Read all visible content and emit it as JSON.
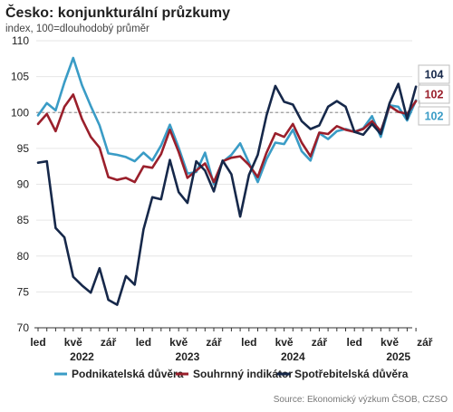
{
  "chart_data": {
    "type": "line",
    "title": "Česko: konjunkturální průzkumy",
    "subtitle": "index, 100=dlouhodobý průměr",
    "ylim": [
      70,
      110
    ],
    "yticks": [
      70,
      75,
      80,
      85,
      90,
      95,
      100,
      105,
      110
    ],
    "reference_line": 100,
    "x_month_labels": [
      "led",
      "kvě",
      "zář",
      "led",
      "kvě",
      "zář",
      "led",
      "kvě",
      "zář",
      "led",
      "kvě",
      "zář"
    ],
    "x_year_labels": [
      "2022",
      "2023",
      "2024",
      "2025"
    ],
    "x_start": "2022-01",
    "series": [
      {
        "name": "Podnikatelská důvěra",
        "color": "#3a9cc6",
        "end_label": "102",
        "values": [
          99.6,
          101.3,
          100.3,
          104.2,
          107.6,
          103.8,
          100.9,
          98.2,
          94.3,
          94.1,
          93.8,
          93.2,
          94.4,
          93.3,
          95.4,
          98.3,
          95.1,
          91.5,
          91.7,
          94.4,
          90.0,
          93.1,
          94.1,
          95.7,
          93.0,
          90.3,
          93.5,
          95.8,
          95.6,
          97.6,
          94.6,
          93.3,
          97.1,
          96.3,
          97.4,
          97.7,
          97.3,
          97.8,
          99.5,
          96.6,
          101.0,
          100.8,
          98.9,
          101.7
        ]
      },
      {
        "name": "Souhrnný indikátor",
        "color": "#9a1f2b",
        "end_label": "102",
        "values": [
          98.4,
          99.8,
          97.4,
          100.8,
          102.5,
          99.1,
          96.6,
          95.1,
          91.0,
          90.6,
          90.9,
          90.3,
          92.5,
          92.3,
          94.2,
          97.6,
          94.5,
          90.9,
          91.9,
          92.9,
          90.3,
          93.2,
          93.7,
          93.9,
          92.7,
          91.0,
          94.4,
          97.1,
          96.6,
          98.4,
          95.8,
          93.9,
          97.2,
          97.0,
          98.1,
          97.6,
          97.3,
          97.7,
          98.8,
          97.4,
          100.9,
          100.1,
          99.8,
          101.6
        ]
      },
      {
        "name": "Spotřebitelská důvěra",
        "color": "#16284a",
        "end_label": "104",
        "values": [
          93.0,
          93.2,
          83.9,
          82.6,
          77.1,
          75.9,
          74.9,
          78.3,
          73.9,
          73.2,
          77.2,
          76.0,
          83.7,
          88.2,
          87.9,
          93.4,
          88.9,
          87.4,
          93.2,
          91.9,
          89.0,
          93.3,
          91.4,
          85.5,
          91.3,
          94.1,
          99.6,
          103.7,
          101.5,
          101.1,
          98.8,
          97.7,
          98.2,
          100.8,
          101.6,
          100.8,
          97.3,
          96.9,
          98.4,
          97.0,
          101.3,
          104.0,
          99.1,
          103.6
        ]
      }
    ],
    "legend": {
      "position": "bottom"
    },
    "source": "Source: Ekonomický výzkum ČSOB, CZSO"
  }
}
